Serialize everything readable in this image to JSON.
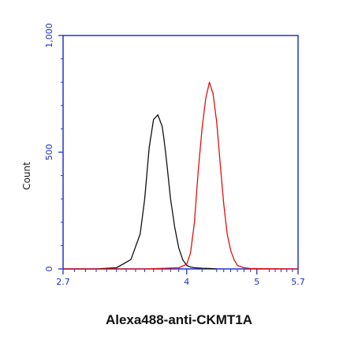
{
  "chart_data": {
    "type": "line",
    "title": "",
    "xlabel": "Alexa488-anti-CKMT1A",
    "ylabel": "Count",
    "xscale": "log",
    "xlim": [
      2.7,
      5.7
    ],
    "ylim": [
      0,
      1000
    ],
    "x_tick_labels": [
      "2.7",
      "4",
      "5",
      "5.7"
    ],
    "y_tick_labels": [
      "0",
      "500",
      "1,000"
    ],
    "grid": false,
    "legend": "none",
    "colors": {
      "axis": "#2233cc",
      "tick_text": "#1f2fbf"
    },
    "series": [
      {
        "color": "#111111",
        "x": [
          2.7,
          3.0,
          3.2,
          3.35,
          3.45,
          3.5,
          3.55,
          3.6,
          3.65,
          3.7,
          3.72,
          3.75,
          3.8,
          3.85,
          3.9,
          3.95,
          4.0,
          4.05,
          4.1,
          4.2,
          4.3,
          4.4
        ],
        "y": [
          0,
          0,
          5,
          40,
          150,
          300,
          520,
          640,
          660,
          610,
          560,
          470,
          300,
          180,
          90,
          40,
          15,
          8,
          5,
          3,
          2,
          0
        ]
      },
      {
        "color": "#e01010",
        "x": [
          2.7,
          3.5,
          3.9,
          4.0,
          4.05,
          4.1,
          4.15,
          4.2,
          4.25,
          4.3,
          4.35,
          4.4,
          4.45,
          4.5,
          4.55,
          4.6,
          4.65,
          4.7,
          4.8,
          4.9,
          5.1,
          5.7
        ],
        "y": [
          0,
          0,
          5,
          20,
          70,
          200,
          420,
          600,
          730,
          800,
          750,
          630,
          450,
          280,
          150,
          80,
          40,
          15,
          5,
          2,
          1,
          0
        ]
      }
    ]
  }
}
